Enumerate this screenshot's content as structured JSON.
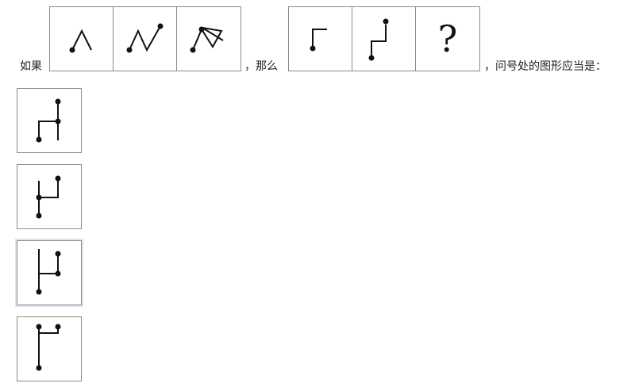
{
  "question": {
    "prefix": "如果",
    "middle": "，那么",
    "suffix": "，问号处的图形应当是："
  },
  "sequence_b": {
    "unknown_symbol": "?"
  },
  "options": [
    {
      "id": "option-1"
    },
    {
      "id": "option-2"
    },
    {
      "id": "option-3"
    },
    {
      "id": "option-4"
    }
  ]
}
